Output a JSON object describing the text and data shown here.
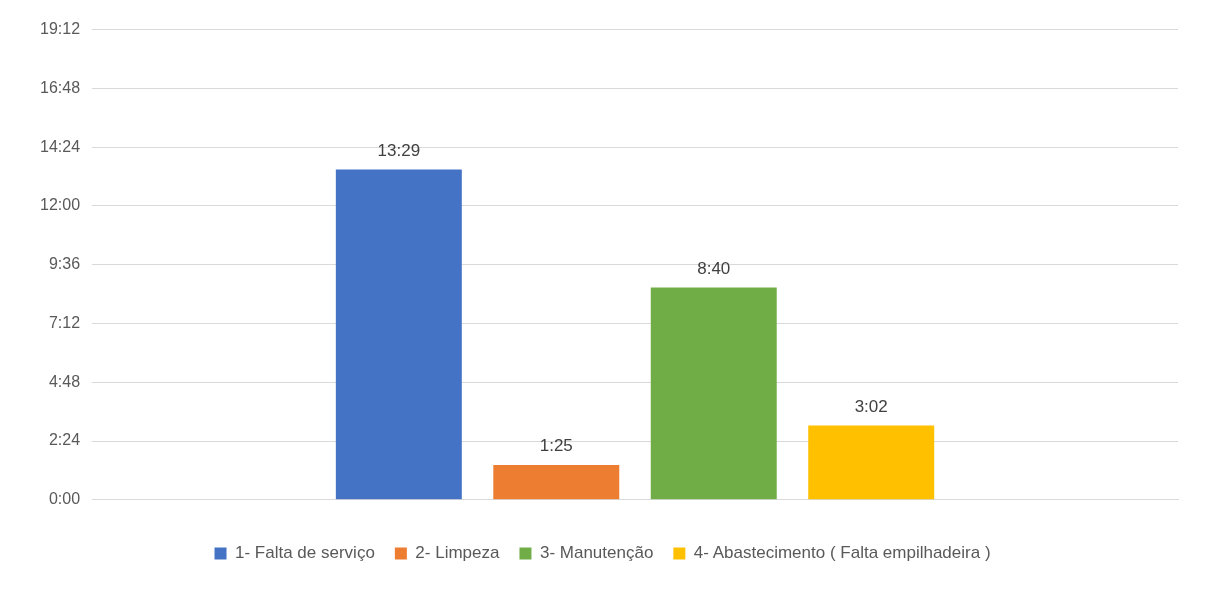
{
  "chart_data": {
    "type": "bar",
    "categories": [
      null
    ],
    "series": [
      {
        "name": "1- Falta de serviço",
        "color": "#4472c4",
        "values": [
          13.483
        ],
        "value_labels": [
          "13:29"
        ]
      },
      {
        "name": "2- Limpeza",
        "color": "#ed7d31",
        "values": [
          1.417
        ],
        "value_labels": [
          "1:25"
        ]
      },
      {
        "name": "3- Manutenção",
        "color": "#70ad47",
        "values": [
          8.667
        ],
        "value_labels": [
          "8:40"
        ]
      },
      {
        "name": "4- Abastecimento ( Falta empilhadeira )",
        "color": "#ffc000",
        "values": [
          3.033
        ],
        "value_labels": [
          "3:02"
        ]
      }
    ],
    "ylim": [
      0,
      19.2
    ],
    "yticks": [
      {
        "value": 0,
        "label": "0:00"
      },
      {
        "value": 2.4,
        "label": "2:24"
      },
      {
        "value": 4.8,
        "label": "4:48"
      },
      {
        "value": 7.2,
        "label": "7:12"
      },
      {
        "value": 9.6,
        "label": "9:36"
      },
      {
        "value": 12,
        "label": "12:00"
      },
      {
        "value": 14.4,
        "label": "14:24"
      },
      {
        "value": 16.8,
        "label": "16:48"
      },
      {
        "value": 19.2,
        "label": "19:12"
      }
    ],
    "grid": "y",
    "legend": "bottom"
  }
}
